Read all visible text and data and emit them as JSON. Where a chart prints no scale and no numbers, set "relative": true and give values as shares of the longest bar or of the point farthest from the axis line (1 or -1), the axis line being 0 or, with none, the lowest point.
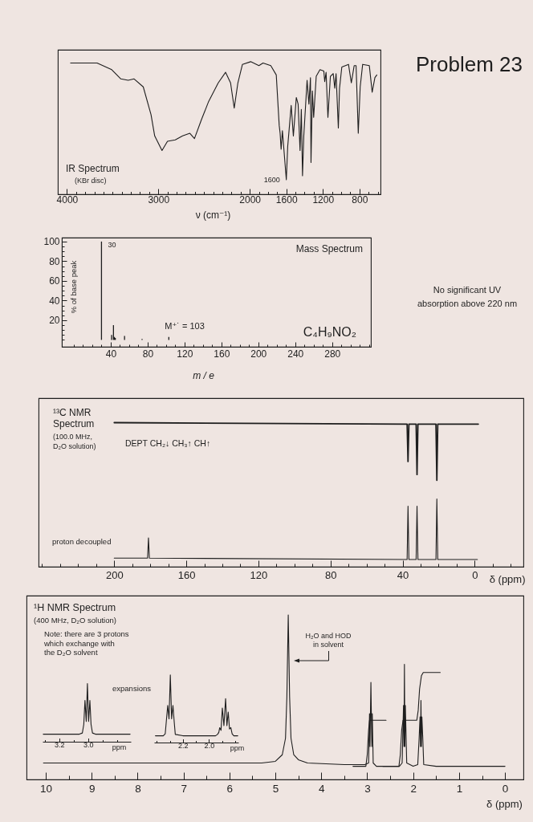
{
  "chart_data": [
    {
      "type": "line",
      "xlabel": "ν (cm⁻¹)",
      "relative": true,
      "xlim": [
        4100,
        570
      ],
      "xticks": [
        4000,
        {
          "value": 3900,
          "label": null
        },
        {
          "value": 3800,
          "label": null
        },
        {
          "value": 3700,
          "label": null
        },
        {
          "value": 3600,
          "label": null
        },
        {
          "value": 3500,
          "label": null
        },
        {
          "value": 3400,
          "label": null
        },
        {
          "value": 3300,
          "label": null
        },
        {
          "value": 3200,
          "label": null
        },
        {
          "value": 3100,
          "label": null
        },
        3000,
        {
          "value": 2900,
          "label": null
        },
        {
          "value": 2800,
          "label": null
        },
        {
          "value": 2700,
          "label": null
        },
        {
          "value": 2600,
          "label": null
        },
        {
          "value": 2500,
          "label": null
        },
        {
          "value": 2400,
          "label": null
        },
        {
          "value": 2300,
          "label": null
        },
        {
          "value": 2200,
          "label": null
        },
        {
          "value": 2100,
          "label": null
        },
        2000,
        {
          "value": 1900,
          "label": null
        },
        {
          "value": 1800,
          "label": null
        },
        {
          "value": 1700,
          "label": null
        },
        1600,
        {
          "value": 1500,
          "label": null
        },
        {
          "value": 1400,
          "label": null
        },
        {
          "value": 1300,
          "label": null
        },
        1200,
        {
          "value": 1100,
          "label": null
        },
        {
          "value": 1000,
          "label": null
        },
        {
          "value": 900,
          "label": null
        },
        800,
        {
          "value": 700,
          "label": null
        },
        {
          "value": 600,
          "label": null
        }
      ],
      "color": "#1e1e1e",
      "x": [
        3960,
        3670,
        3510,
        3410,
        3330,
        3265,
        3165,
        3080,
        3040,
        2960,
        2900,
        2815,
        2735,
        2655,
        2605,
        2530,
        2450,
        2345,
        2265,
        2210,
        2170,
        2130,
        2080,
        1990,
        1900,
        1855,
        1770,
        1710,
        1678,
        1668,
        1657,
        1643,
        1600,
        1585,
        1547,
        1523,
        1491,
        1471,
        1450,
        1436,
        1423,
        1409,
        1373,
        1353,
        1336,
        1330,
        1315,
        1301,
        1273,
        1232,
        1190,
        1180,
        1165,
        1145,
        1118,
        1087,
        1070,
        1056,
        1031,
        1018,
        993,
        920,
        889,
        858,
        837,
        813,
        792,
        765,
        692,
        661,
        631,
        610
      ],
      "values": [
        0.99,
        0.99,
        0.94,
        0.87,
        0.86,
        0.87,
        0.81,
        0.6,
        0.44,
        0.33,
        0.4,
        0.41,
        0.44,
        0.46,
        0.42,
        0.56,
        0.7,
        0.84,
        0.92,
        0.84,
        0.65,
        0.84,
        0.98,
        1.0,
        0.97,
        0.99,
        0.97,
        0.9,
        0.52,
        0.46,
        0.34,
        0.48,
        0.11,
        0.36,
        0.67,
        0.44,
        0.73,
        0.68,
        0.33,
        0.64,
        0.14,
        0.44,
        0.86,
        0.68,
        0.88,
        0.24,
        0.78,
        0.58,
        0.89,
        0.94,
        0.93,
        0.85,
        0.92,
        0.58,
        0.89,
        0.91,
        0.8,
        0.91,
        0.5,
        0.8,
        0.96,
        0.98,
        0.84,
        0.97,
        0.97,
        0.46,
        0.81,
        0.98,
        0.97,
        0.77,
        0.88,
        0.9
      ],
      "annotations": [
        "IR Spectrum",
        "(KBr disc)",
        {
          "text": "1600",
          "x": 1600,
          "y": 0.11
        }
      ]
    },
    {
      "type": "other",
      "title": "Problem 23",
      "annotations": [
        "No significant UV absorption above 220 nm"
      ]
    },
    {
      "type": "bar",
      "xlabel": "m / e",
      "ylabel": "% of base peak",
      "color": "#1e1e1e",
      "x": [
        30,
        41,
        43,
        44,
        45,
        55,
        74,
        103
      ],
      "values": [
        100,
        5,
        15,
        3,
        2,
        4,
        1,
        3
      ],
      "xlim": [
        -13,
        322
      ],
      "xticks": [
        {
          "value": 0,
          "label": null
        },
        {
          "value": 10,
          "label": null
        },
        {
          "value": 20,
          "label": null
        },
        {
          "value": 30,
          "label": null
        },
        40,
        {
          "value": 50,
          "label": null
        },
        {
          "value": 60,
          "label": null
        },
        {
          "value": 70,
          "label": null
        },
        80,
        {
          "value": 90,
          "label": null
        },
        {
          "value": 100,
          "label": null
        },
        {
          "value": 110,
          "label": null
        },
        120,
        {
          "value": 130,
          "label": null
        },
        {
          "value": 140,
          "label": null
        },
        {
          "value": 150,
          "label": null
        },
        160,
        {
          "value": 170,
          "label": null
        },
        {
          "value": 180,
          "label": null
        },
        {
          "value": 190,
          "label": null
        },
        200,
        {
          "value": 210,
          "label": null
        },
        {
          "value": 220,
          "label": null
        },
        {
          "value": 230,
          "label": null
        },
        240,
        {
          "value": 250,
          "label": null
        },
        {
          "value": 260,
          "label": null
        },
        {
          "value": 270,
          "label": null
        },
        280,
        {
          "value": 290,
          "label": null
        },
        {
          "value": 300,
          "label": null
        },
        {
          "value": 310,
          "label": null
        },
        {
          "value": 320,
          "label": null
        }
      ],
      "ylim": [
        -7,
        104
      ],
      "yticks": [
        {
          "value": 0,
          "label": null
        },
        {
          "value": 5,
          "label": null
        },
        {
          "value": 10,
          "label": null
        },
        {
          "value": 15,
          "label": null
        },
        20,
        {
          "value": 25,
          "label": null
        },
        {
          "value": 30,
          "label": null
        },
        {
          "value": 35,
          "label": null
        },
        40,
        {
          "value": 45,
          "label": null
        },
        {
          "value": 50,
          "label": null
        },
        {
          "value": 55,
          "label": null
        },
        60,
        {
          "value": 65,
          "label": null
        },
        {
          "value": 70,
          "label": null
        },
        {
          "value": 75,
          "label": null
        },
        80,
        {
          "value": 85,
          "label": null
        },
        {
          "value": 90,
          "label": null
        },
        {
          "value": 95,
          "label": null
        },
        100
      ],
      "annotations": [
        "Mass Spectrum",
        {
          "text": "30",
          "x": 30,
          "y": 100
        },
        {
          "text": "M⁺˙ = 103",
          "x": 103,
          "y": 3
        },
        "C₄H₉NO₂"
      ]
    },
    {
      "type": "line",
      "xlabel": "δ (ppm)",
      "relative": true,
      "xlim": [
        242,
        -27
      ],
      "xticks": [
        {
          "value": 240,
          "label": null
        },
        {
          "value": 230,
          "label": null
        },
        {
          "value": 220,
          "label": null
        },
        {
          "value": 210,
          "label": null
        },
        200,
        {
          "value": 190,
          "label": null
        },
        {
          "value": 180,
          "label": null
        },
        {
          "value": 170,
          "label": null
        },
        160,
        {
          "value": 150,
          "label": null
        },
        {
          "value": 140,
          "label": null
        },
        {
          "value": 130,
          "label": null
        },
        120,
        {
          "value": 110,
          "label": null
        },
        {
          "value": 100,
          "label": null
        },
        {
          "value": 90,
          "label": null
        },
        80,
        {
          "value": 70,
          "label": null
        },
        {
          "value": 60,
          "label": null
        },
        {
          "value": 50,
          "label": null
        },
        40,
        {
          "value": 30,
          "label": null
        },
        {
          "value": 20,
          "label": null
        },
        {
          "value": 10,
          "label": null
        },
        0,
        {
          "value": -10,
          "label": null
        },
        {
          "value": -20,
          "label": null
        }
      ],
      "series": [
        {
          "color": "#1e1e1e",
          "x": [
            200,
            37.5,
            37,
            36.5,
            32.5,
            32,
            31.5,
            21.5,
            21,
            20.5,
            -2
          ],
          "values": [
            1.0,
            0.99,
            0.73,
            0.99,
            0.99,
            0.64,
            0.99,
            0.99,
            0.6,
            0.99,
            0.99
          ]
        },
        {
          "color": "#1e1e1e",
          "x": [
            200,
            181.5,
            181,
            180.5,
            37.5,
            37,
            36.5,
            32.5,
            32,
            31.5,
            21.5,
            21,
            20.5,
            -1.5
          ],
          "values": [
            0.06,
            0.06,
            0.2,
            0.06,
            0.05,
            0.42,
            0.05,
            0.05,
            0.42,
            0.05,
            0.05,
            0.47,
            0.05,
            0.05
          ]
        }
      ],
      "annotations": [
        "¹³C NMR Spectrum",
        "(100.0 MHz, D₂O solution)",
        "DEPT CH₂↓ CH₃↑ CH↑",
        "proton decoupled"
      ]
    },
    {
      "type": "line",
      "xlabel": "δ (ppm)",
      "relative": true,
      "xlim": [
        10.42,
        -0.4
      ],
      "xticks": [
        10,
        {
          "value": 9.5,
          "label": null
        },
        9,
        {
          "value": 8.5,
          "label": null
        },
        8,
        {
          "value": 7.5,
          "label": null
        },
        7,
        {
          "value": 6.5,
          "label": null
        },
        6,
        {
          "value": 5.5,
          "label": null
        },
        5,
        {
          "value": 4.5,
          "label": null
        },
        4,
        {
          "value": 3.5,
          "label": null
        },
        3,
        {
          "value": 2.5,
          "label": null
        },
        2,
        {
          "value": 1.5,
          "label": null
        },
        1,
        {
          "value": 0.5,
          "label": null
        },
        0
      ],
      "series": [
        {
          "color": "#1e1e1e",
          "x": [
            10.05,
            5.3,
            5.0,
            4.85,
            4.78,
            4.75,
            4.72,
            4.69,
            4.66,
            4.6,
            4.5,
            4.3,
            3.5,
            3.05,
            2.97,
            2.95,
            2.94,
            2.92,
            2.9,
            2.89,
            2.87,
            2.8,
            2.3,
            2.24,
            2.21,
            2.2,
            2.19,
            2.18,
            2.17,
            2.14,
            2.0,
            1.9,
            1.87,
            1.85,
            1.84,
            1.83,
            1.82,
            1.81,
            1.79,
            1.77,
            1.5,
            0.0
          ],
          "values": [
            0.1,
            0.1,
            0.11,
            0.15,
            0.25,
            0.5,
            1.0,
            0.5,
            0.25,
            0.15,
            0.12,
            0.1,
            0.09,
            0.09,
            0.1,
            0.4,
            0.2,
            0.59,
            0.2,
            0.4,
            0.1,
            0.08,
            0.08,
            0.1,
            0.45,
            0.2,
            0.7,
            0.2,
            0.45,
            0.1,
            0.08,
            0.09,
            0.25,
            0.38,
            0.2,
            0.48,
            0.2,
            0.38,
            0.25,
            0.09,
            0.08,
            0.08
          ]
        },
        {
          "color": "#1e1e1e",
          "x": [
            3.31,
            3.03,
            3.0,
            2.97,
            2.95,
            2.59
          ],
          "values": [
            0.08,
            0.08,
            0.15,
            0.3,
            0.36,
            0.36
          ]
        },
        {
          "color": "#1e1e1e",
          "x": [
            2.66,
            2.31,
            2.28,
            2.25,
            2.22,
            1.92,
            1.89,
            1.86,
            1.82,
            1.78,
            1.41
          ],
          "values": [
            0.08,
            0.08,
            0.15,
            0.3,
            0.36,
            0.36,
            0.42,
            0.55,
            0.63,
            0.65,
            0.65
          ]
        }
      ],
      "annotations": [
        "¹H NMR Spectrum",
        "(400 MHz, D₂O solution)",
        "Note: there are 3 protons which exchange with the D₂O solvent",
        "expansions",
        {
          "text": "H₂O and HOD in solvent",
          "x": 4.72,
          "y": 0.72
        }
      ]
    },
    {
      "type": "line",
      "xlabel": "ppm",
      "relative": true,
      "xlim": [
        3.315,
        2.705
      ],
      "xticks": [
        {
          "value": 3.3,
          "label": null
        },
        3.2,
        {
          "value": 3.1,
          "label": null
        },
        {
          "value": 3,
          "label": "3.0"
        },
        {
          "value": 2.9,
          "label": null
        },
        {
          "value": 2.8,
          "label": null
        }
      ],
      "color": "#1e1e1e",
      "x": [
        3.31,
        3.06,
        3.04,
        3.03,
        3.022,
        3.013,
        3.005,
        2.997,
        2.988,
        2.98,
        2.97,
        2.95,
        2.71
      ],
      "values": [
        0.13,
        0.13,
        0.15,
        0.3,
        0.71,
        0.35,
        1.0,
        0.35,
        0.71,
        0.3,
        0.15,
        0.13,
        0.13
      ]
    },
    {
      "type": "line",
      "xlabel": "ppm",
      "relative": true,
      "xlim": [
        2.42,
        1.775
      ],
      "xticks": [
        {
          "value": 2.4,
          "label": null
        },
        {
          "value": 2.3,
          "label": null
        },
        2.2,
        {
          "value": 2.1,
          "label": null
        },
        {
          "value": 2,
          "label": "2.0"
        },
        {
          "value": 1.9,
          "label": null
        },
        {
          "value": 1.8,
          "label": null
        }
      ],
      "color": "#1e1e1e",
      "x": [
        2.41,
        2.35,
        2.335,
        2.325,
        2.316,
        2.306,
        2.296,
        2.286,
        2.276,
        2.266,
        2.258,
        2.2,
        1.95,
        1.935,
        1.925,
        1.918,
        1.908,
        1.898,
        1.886,
        1.873,
        1.863,
        1.853,
        1.843,
        1.833,
        1.823,
        1.81,
        1.78
      ],
      "values": [
        0.1,
        0.1,
        0.13,
        0.35,
        0.55,
        0.35,
        1.0,
        0.35,
        0.55,
        0.3,
        0.12,
        0.1,
        0.1,
        0.12,
        0.15,
        0.22,
        0.18,
        0.51,
        0.25,
        0.65,
        0.25,
        0.45,
        0.2,
        0.22,
        0.13,
        0.1,
        0.1
      ]
    }
  ]
}
